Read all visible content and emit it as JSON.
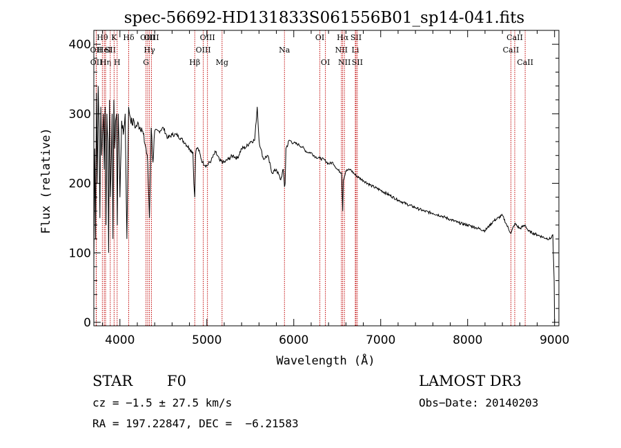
{
  "chart_data": {
    "type": "line",
    "title": "spec-56692-HD131833S061556B01_sp14-041.fits",
    "xlabel": "Wavelength (Å)",
    "ylabel": "Flux (relative)",
    "xlim": [
      3700,
      9050
    ],
    "ylim": [
      -5,
      420
    ],
    "xticks": [
      4000,
      5000,
      6000,
      7000,
      8000,
      9000
    ],
    "yticks": [
      0,
      100,
      200,
      300,
      400
    ],
    "series": [
      {
        "name": "flux",
        "x": [
          3700,
          3710,
          3720,
          3730,
          3740,
          3750,
          3760,
          3770,
          3780,
          3790,
          3800,
          3810,
          3820,
          3830,
          3840,
          3850,
          3860,
          3870,
          3880,
          3890,
          3900,
          3910,
          3920,
          3930,
          3940,
          3950,
          3960,
          3970,
          3980,
          3990,
          4000,
          4020,
          4040,
          4060,
          4080,
          4100,
          4120,
          4140,
          4160,
          4180,
          4200,
          4250,
          4300,
          4320,
          4340,
          4360,
          4380,
          4400,
          4450,
          4500,
          4550,
          4600,
          4650,
          4700,
          4750,
          4800,
          4840,
          4850,
          4861,
          4870,
          4880,
          4900,
          4950,
          5000,
          5050,
          5100,
          5150,
          5200,
          5250,
          5300,
          5350,
          5400,
          5450,
          5500,
          5550,
          5580,
          5600,
          5620,
          5650,
          5700,
          5750,
          5800,
          5850,
          5880,
          5893,
          5900,
          5910,
          5950,
          6000,
          6050,
          6100,
          6150,
          6200,
          6250,
          6300,
          6350,
          6400,
          6450,
          6500,
          6550,
          6563,
          6570,
          6600,
          6650,
          6700,
          6750,
          6800,
          6900,
          7000,
          7100,
          7200,
          7300,
          7400,
          7500,
          7600,
          7700,
          7800,
          7900,
          8000,
          8100,
          8200,
          8300,
          8400,
          8450,
          8498,
          8542,
          8600,
          8662,
          8700,
          8800,
          8900,
          8950,
          8980,
          8995,
          9000
        ],
        "y": [
          80,
          250,
          120,
          330,
          200,
          340,
          280,
          150,
          310,
          240,
          270,
          300,
          220,
          310,
          140,
          300,
          260,
          100,
          320,
          180,
          230,
          300,
          120,
          320,
          250,
          290,
          300,
          140,
          300,
          260,
          180,
          290,
          270,
          300,
          120,
          310,
          295,
          285,
          290,
          280,
          285,
          280,
          250,
          230,
          150,
          280,
          230,
          275,
          275,
          280,
          265,
          270,
          270,
          265,
          258,
          250,
          245,
          200,
          180,
          240,
          250,
          250,
          230,
          225,
          233,
          245,
          232,
          230,
          235,
          240,
          236,
          250,
          252,
          260,
          262,
          310,
          262,
          250,
          235,
          240,
          215,
          220,
          205,
          220,
          195,
          200,
          250,
          262,
          258,
          256,
          252,
          245,
          244,
          238,
          236,
          234,
          228,
          230,
          220,
          215,
          160,
          205,
          218,
          220,
          213,
          208,
          204,
          196,
          190,
          183,
          176,
          170,
          165,
          160,
          157,
          153,
          148,
          143,
          140,
          136,
          132,
          146,
          154,
          140,
          128,
          142,
          135,
          140,
          131,
          126,
          121,
          120,
          126,
          60,
          0
        ]
      }
    ],
    "spectral_lines": [
      {
        "label": "OII",
        "x": 3727,
        "row": 1
      },
      {
        "label": "OII",
        "x": 3729,
        "row": 2
      },
      {
        "label": "Hθ",
        "x": 3798,
        "row": 0
      },
      {
        "label": "HeI",
        "x": 3820,
        "row": 1
      },
      {
        "label": "Hη",
        "x": 3835,
        "row": 2
      },
      {
        "label": "SII",
        "x": 3889,
        "row": 1
      },
      {
        "label": "K",
        "x": 3933,
        "row": 0
      },
      {
        "label": "H",
        "x": 3968,
        "row": 2
      },
      {
        "label": "Hδ",
        "x": 4101,
        "row": 0
      },
      {
        "label": "OIII",
        "x": 4320,
        "row": 0
      },
      {
        "label": "G",
        "x": 4300,
        "row": 2
      },
      {
        "label": "Hγ",
        "x": 4340,
        "row": 1
      },
      {
        "label": "OIII",
        "x": 4363,
        "row": 0
      },
      {
        "label": "Hβ",
        "x": 4861,
        "row": 2
      },
      {
        "label": "OIII",
        "x": 4959,
        "row": 1
      },
      {
        "label": "OIII",
        "x": 5007,
        "row": 0
      },
      {
        "label": "Mg",
        "x": 5175,
        "row": 2
      },
      {
        "label": "Na",
        "x": 5893,
        "row": 1
      },
      {
        "label": "OI",
        "x": 6300,
        "row": 0
      },
      {
        "label": "OI",
        "x": 6364,
        "row": 2
      },
      {
        "label": "NII",
        "x": 6548,
        "row": 1
      },
      {
        "label": "Hα",
        "x": 6563,
        "row": 0
      },
      {
        "label": "NII",
        "x": 6583,
        "row": 2
      },
      {
        "label": "Li",
        "x": 6708,
        "row": 1
      },
      {
        "label": "SII",
        "x": 6716,
        "row": 0
      },
      {
        "label": "SII",
        "x": 6731,
        "row": 2
      },
      {
        "label": "CaII",
        "x": 8498,
        "row": 1
      },
      {
        "label": "CaII",
        "x": 8542,
        "row": 0
      },
      {
        "label": "CaII",
        "x": 8662,
        "row": 2
      }
    ]
  },
  "info": {
    "object_class": "STAR",
    "subclass": "F0",
    "survey": "LAMOST DR3",
    "cz": "cz = −1.5 ± 27.5 km/s",
    "obs_date": "Obs−Date: 20140203",
    "coords": "RA = 197.22847, DEC =  −6.21583"
  },
  "colors": {
    "line_markers": "#c00000",
    "spectrum": "#000000"
  }
}
